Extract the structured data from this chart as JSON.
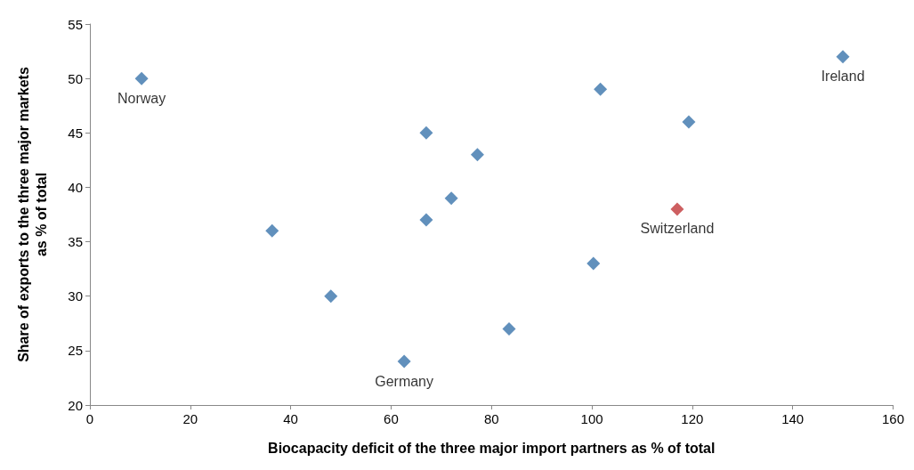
{
  "chart_data": {
    "type": "scatter",
    "xlabel": "Biocapacity deficit of the three major import partners as % of total",
    "ylabel": "Share of exports to the three major markets\nas % of total",
    "marker": "diamond",
    "grid": false,
    "xlim": [
      0,
      160
    ],
    "xticks": [
      0,
      20,
      40,
      60,
      80,
      100,
      120,
      140,
      160
    ],
    "ylim": [
      20,
      55
    ],
    "yticks": [
      20,
      25,
      30,
      35,
      40,
      45,
      50,
      55
    ],
    "series": [
      {
        "color": "#3a74ab",
        "x": [
          10.3,
          36.3,
          48,
          62.6,
          67,
          67,
          72,
          77.2,
          83.5,
          100.3,
          101.7,
          119.3,
          150
        ],
        "values": [
          50,
          36,
          30,
          24,
          45,
          37,
          39,
          43,
          27,
          33,
          49,
          46,
          52
        ]
      },
      {
        "color": "#c0373a",
        "x": [
          117
        ],
        "values": [
          38
        ]
      }
    ],
    "annotations": [
      {
        "text": "Norway",
        "x": 10.3,
        "y": 50
      },
      {
        "text": "Germany",
        "x": 62.6,
        "y": 24
      },
      {
        "text": "Switzerland",
        "x": 117,
        "y": 38
      },
      {
        "text": "Ireland",
        "x": 150,
        "y": 52
      }
    ]
  }
}
